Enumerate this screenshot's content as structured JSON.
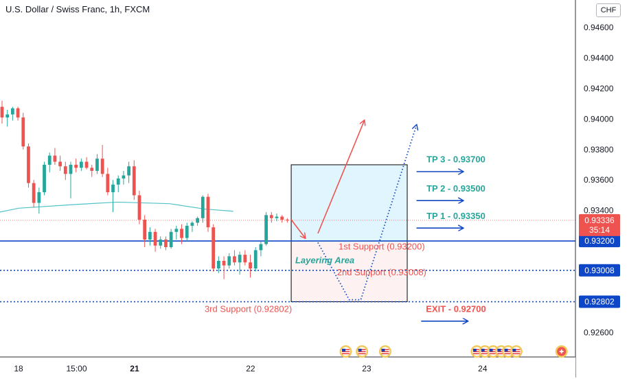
{
  "title": "U.S. Dollar / Swiss Franc, 1h, FXCM",
  "currency": "CHF",
  "chart_data": {
    "type": "candlestick",
    "y_axis_ticks": [
      "0.94600",
      "0.94400",
      "0.94200",
      "0.94000",
      "0.93800",
      "0.93600",
      "0.93400",
      "0.92600"
    ],
    "y_axis_tick_values": [
      0.946,
      0.944,
      0.942,
      0.94,
      0.938,
      0.936,
      0.934,
      0.926
    ],
    "x_axis_ticks": [
      {
        "label": "18",
        "pos": 0.0,
        "bold": false
      },
      {
        "label": "15:00",
        "pos": 0.5,
        "bold": false
      },
      {
        "label": "21",
        "pos": 1.0,
        "bold": true
      },
      {
        "label": "22",
        "pos": 2.0,
        "bold": false
      },
      {
        "label": "23",
        "pos": 3.0,
        "bold": false
      },
      {
        "label": "24",
        "pos": 4.0,
        "bold": false
      }
    ],
    "ylim": [
      0.9244,
      0.9478
    ],
    "xlim": [
      -0.16,
      4.8
    ],
    "moving_average_color": "#4fc3c9",
    "up_color": "#26a69a",
    "down_color": "#ef5350",
    "candles": [
      {
        "o": 0.9408,
        "h": 0.9412,
        "l": 0.9397,
        "c": 0.9401
      },
      {
        "o": 0.9401,
        "h": 0.9406,
        "l": 0.9395,
        "c": 0.9403
      },
      {
        "o": 0.9403,
        "h": 0.9408,
        "l": 0.9399,
        "c": 0.9407
      },
      {
        "o": 0.9407,
        "h": 0.9408,
        "l": 0.9399,
        "c": 0.9401
      },
      {
        "o": 0.9401,
        "h": 0.9404,
        "l": 0.938,
        "c": 0.9382
      },
      {
        "o": 0.9382,
        "h": 0.9384,
        "l": 0.9355,
        "c": 0.9358
      },
      {
        "o": 0.9358,
        "h": 0.936,
        "l": 0.9342,
        "c": 0.9345
      },
      {
        "o": 0.9345,
        "h": 0.9355,
        "l": 0.9338,
        "c": 0.9352
      },
      {
        "o": 0.9352,
        "h": 0.9372,
        "l": 0.935,
        "c": 0.937
      },
      {
        "o": 0.937,
        "h": 0.9378,
        "l": 0.9365,
        "c": 0.9376
      },
      {
        "o": 0.9376,
        "h": 0.9381,
        "l": 0.937,
        "c": 0.9372
      },
      {
        "o": 0.9372,
        "h": 0.9376,
        "l": 0.9366,
        "c": 0.9369
      },
      {
        "o": 0.9369,
        "h": 0.9372,
        "l": 0.936,
        "c": 0.9364
      },
      {
        "o": 0.9364,
        "h": 0.9372,
        "l": 0.9348,
        "c": 0.937
      },
      {
        "o": 0.937,
        "h": 0.9374,
        "l": 0.9365,
        "c": 0.9368
      },
      {
        "o": 0.9368,
        "h": 0.9374,
        "l": 0.9366,
        "c": 0.9372
      },
      {
        "o": 0.9372,
        "h": 0.9375,
        "l": 0.9367,
        "c": 0.9368
      },
      {
        "o": 0.9368,
        "h": 0.937,
        "l": 0.9362,
        "c": 0.9366
      },
      {
        "o": 0.9366,
        "h": 0.9377,
        "l": 0.9364,
        "c": 0.9374
      },
      {
        "o": 0.9374,
        "h": 0.9383,
        "l": 0.9362,
        "c": 0.9364
      },
      {
        "o": 0.9364,
        "h": 0.9368,
        "l": 0.935,
        "c": 0.9352
      },
      {
        "o": 0.9352,
        "h": 0.936,
        "l": 0.9339,
        "c": 0.9357
      },
      {
        "o": 0.9357,
        "h": 0.9363,
        "l": 0.9352,
        "c": 0.9361
      },
      {
        "o": 0.9361,
        "h": 0.9366,
        "l": 0.9357,
        "c": 0.9363
      },
      {
        "o": 0.9363,
        "h": 0.9372,
        "l": 0.9358,
        "c": 0.9369
      },
      {
        "o": 0.9369,
        "h": 0.9373,
        "l": 0.9347,
        "c": 0.935
      },
      {
        "o": 0.935,
        "h": 0.9353,
        "l": 0.9331,
        "c": 0.9334
      },
      {
        "o": 0.9334,
        "h": 0.9337,
        "l": 0.9316,
        "c": 0.9321
      },
      {
        "o": 0.9321,
        "h": 0.9329,
        "l": 0.9317,
        "c": 0.9326
      },
      {
        "o": 0.9326,
        "h": 0.9328,
        "l": 0.9313,
        "c": 0.9317
      },
      {
        "o": 0.9317,
        "h": 0.9323,
        "l": 0.9315,
        "c": 0.9321
      },
      {
        "o": 0.9321,
        "h": 0.9323,
        "l": 0.9314,
        "c": 0.9316
      },
      {
        "o": 0.9316,
        "h": 0.9328,
        "l": 0.9315,
        "c": 0.9326
      },
      {
        "o": 0.9326,
        "h": 0.933,
        "l": 0.9321,
        "c": 0.9328
      },
      {
        "o": 0.9328,
        "h": 0.9331,
        "l": 0.9318,
        "c": 0.9322
      },
      {
        "o": 0.9322,
        "h": 0.9332,
        "l": 0.932,
        "c": 0.933
      },
      {
        "o": 0.933,
        "h": 0.9333,
        "l": 0.9326,
        "c": 0.9332
      },
      {
        "o": 0.9332,
        "h": 0.9336,
        "l": 0.933,
        "c": 0.9335
      },
      {
        "o": 0.9335,
        "h": 0.935,
        "l": 0.9332,
        "c": 0.9349
      },
      {
        "o": 0.9349,
        "h": 0.9351,
        "l": 0.9326,
        "c": 0.9329
      },
      {
        "o": 0.9329,
        "h": 0.9331,
        "l": 0.93,
        "c": 0.9302
      },
      {
        "o": 0.9302,
        "h": 0.931,
        "l": 0.9299,
        "c": 0.9307
      },
      {
        "o": 0.9307,
        "h": 0.931,
        "l": 0.9295,
        "c": 0.9304
      },
      {
        "o": 0.9304,
        "h": 0.9312,
        "l": 0.9302,
        "c": 0.931
      },
      {
        "o": 0.931,
        "h": 0.9314,
        "l": 0.9304,
        "c": 0.9306
      },
      {
        "o": 0.9306,
        "h": 0.9313,
        "l": 0.9298,
        "c": 0.9311
      },
      {
        "o": 0.9311,
        "h": 0.9314,
        "l": 0.9304,
        "c": 0.9306
      },
      {
        "o": 0.9306,
        "h": 0.9311,
        "l": 0.9296,
        "c": 0.9302
      },
      {
        "o": 0.9302,
        "h": 0.9316,
        "l": 0.93,
        "c": 0.9314
      },
      {
        "o": 0.9314,
        "h": 0.932,
        "l": 0.931,
        "c": 0.9318
      },
      {
        "o": 0.9318,
        "h": 0.9339,
        "l": 0.9317,
        "c": 0.9337
      },
      {
        "o": 0.9337,
        "h": 0.9339,
        "l": 0.9332,
        "c": 0.9335
      },
      {
        "o": 0.9335,
        "h": 0.9338,
        "l": 0.9333,
        "c": 0.9336
      },
      {
        "o": 0.9336,
        "h": 0.9337,
        "l": 0.9332,
        "c": 0.9334
      },
      {
        "o": 0.9334,
        "h": 0.9335,
        "l": 0.9332,
        "c": 0.93336
      }
    ],
    "moving_average": [
      {
        "x": -0.16,
        "y": 0.9339
      },
      {
        "x": 0.0,
        "y": 0.93415
      },
      {
        "x": 0.5,
        "y": 0.9344
      },
      {
        "x": 0.85,
        "y": 0.93455
      },
      {
        "x": 1.3,
        "y": 0.93445
      },
      {
        "x": 1.6,
        "y": 0.9341
      },
      {
        "x": 1.85,
        "y": 0.93395
      }
    ],
    "current_price": {
      "value": 0.93336,
      "label": "0.93336",
      "countdown": "35:14",
      "color": "#ef5350"
    },
    "levels": [
      {
        "value": 0.932,
        "label": "0.93200",
        "color": "#0d47c7",
        "style": "solid"
      },
      {
        "value": 0.93008,
        "label": "0.93008",
        "color": "#0d47c7",
        "style": "dotted"
      },
      {
        "value": 0.92802,
        "label": "0.92802",
        "color": "#0d47c7",
        "style": "dotted"
      }
    ],
    "zones": [
      {
        "x0": 2.35,
        "x1": 3.35,
        "y0": 0.932,
        "y1": 0.937,
        "color": "#e1f5fe"
      },
      {
        "x0": 2.35,
        "x1": 3.35,
        "y0": 0.92802,
        "y1": 0.932,
        "color": "#fdf1f1"
      }
    ],
    "annotations": [
      {
        "text": "TP 3 - 0.93700",
        "x": 3.77,
        "y": 0.93715,
        "color": "#26a69a",
        "arrow_x0": 3.43,
        "arrow_x1": 3.83,
        "arrow_y": 0.93655
      },
      {
        "text": "TP 2 - 0.93500",
        "x": 3.77,
        "y": 0.93525,
        "color": "#26a69a",
        "arrow_x0": 3.43,
        "arrow_x1": 3.83,
        "arrow_y": 0.93465
      },
      {
        "text": "TP 1 - 0.93350",
        "x": 3.77,
        "y": 0.93345,
        "color": "#26a69a",
        "arrow_x0": 3.43,
        "arrow_x1": 3.83,
        "arrow_y": 0.93285
      },
      {
        "text": "EXIT - 0.92700",
        "x": 3.77,
        "y": 0.92735,
        "color": "#ef5350",
        "arrow_x0": 3.47,
        "arrow_x1": 3.87,
        "arrow_y": 0.92675
      }
    ],
    "support_labels": [
      {
        "text": "1st Support (0.93200)",
        "x": 3.13,
        "y": 0.93145,
        "color": "#ef5350"
      },
      {
        "text": "2nd Support (0.93008)",
        "x": 3.13,
        "y": 0.92975,
        "color": "#ef5350"
      },
      {
        "text": "3rd Support (0.92802)",
        "x": 1.98,
        "y": 0.92735,
        "color": "#ef5350"
      }
    ],
    "zone_label": {
      "text": "Layering Area",
      "x": 2.64,
      "y": 0.93055,
      "color": "#26a69a"
    },
    "red_arrows": [
      {
        "points": [
          [
            2.35,
            0.9334
          ],
          [
            2.47,
            0.9322
          ]
        ],
        "color": "#ef5350"
      },
      {
        "points": [
          [
            2.58,
            0.9325
          ],
          [
            2.98,
            0.9399
          ]
        ],
        "color": "#ef5350"
      }
    ],
    "dotted_path": {
      "points": [
        [
          2.58,
          0.9319
        ],
        [
          2.85,
          0.92815
        ],
        [
          2.95,
          0.92815
        ],
        [
          3.43,
          0.9396
        ]
      ],
      "color": "#0d47c7"
    },
    "event_icon_positions": [
      2.82,
      2.96,
      3.16,
      3.95,
      4.02,
      4.09,
      4.16,
      4.22,
      4.29,
      4.68
    ]
  }
}
